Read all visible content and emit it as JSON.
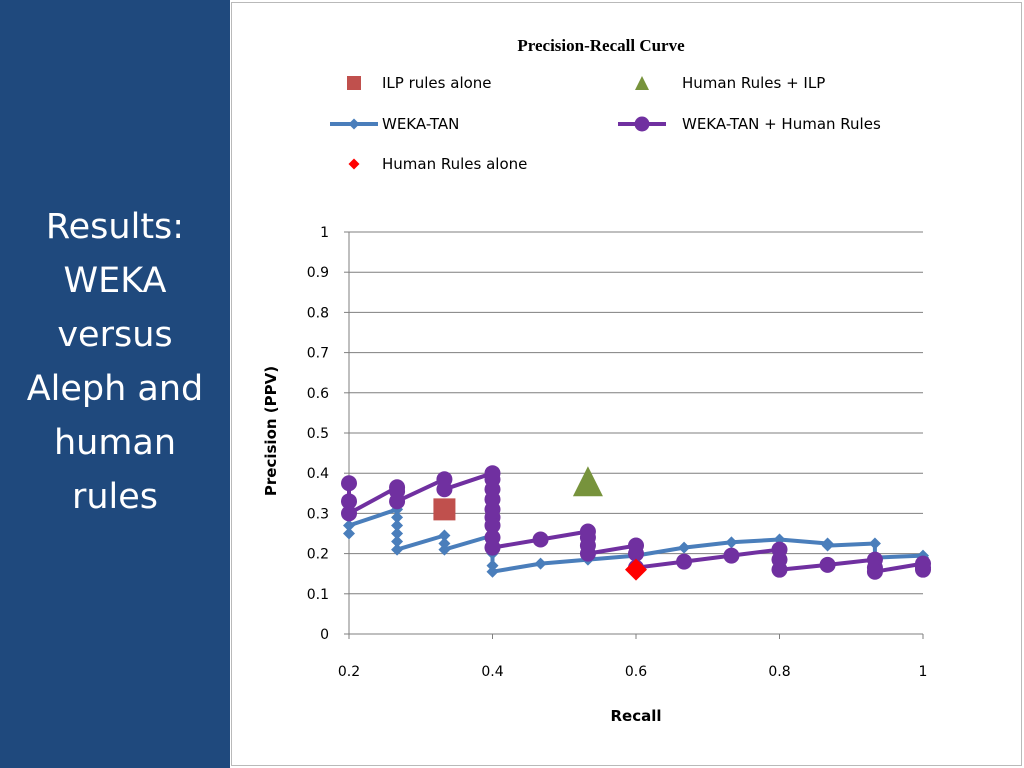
{
  "slide": {
    "title_lines": [
      "Results:",
      "WEKA",
      "versus",
      "Aleph and",
      "human",
      "rules"
    ],
    "colors": {
      "panel": "#1f497d",
      "text": "#ffffff"
    }
  },
  "chart_data": {
    "type": "line",
    "title": "Precision-Recall Curve",
    "xlabel": "Recall",
    "ylabel": "Precision (PPV)",
    "xlim": [
      0.2,
      1.0
    ],
    "ylim": [
      0,
      1
    ],
    "x_ticks": [
      "0.2",
      "0.4",
      "0.6",
      "0.8",
      "1"
    ],
    "y_ticks": [
      "0",
      "0.1",
      "0.2",
      "0.3",
      "0.4",
      "0.5",
      "0.6",
      "0.7",
      "0.8",
      "0.9",
      "1"
    ],
    "grid": true,
    "legend_position": "top",
    "series": [
      {
        "name": "ILP rules alone",
        "kind": "point",
        "marker": "square",
        "color": "#c0504d",
        "points": [
          [
            0.333,
            0.31
          ]
        ]
      },
      {
        "name": "Human Rules + ILP",
        "kind": "point",
        "marker": "triangle",
        "color": "#77933c",
        "points": [
          [
            0.533,
            0.38
          ]
        ]
      },
      {
        "name": "WEKA-TAN",
        "kind": "line",
        "marker": "diamond",
        "color": "#4a7ebb",
        "points": [
          [
            0.2,
            0.25
          ],
          [
            0.2,
            0.27
          ],
          [
            0.267,
            0.31
          ],
          [
            0.267,
            0.29
          ],
          [
            0.267,
            0.27
          ],
          [
            0.267,
            0.25
          ],
          [
            0.267,
            0.23
          ],
          [
            0.267,
            0.21
          ],
          [
            0.333,
            0.245
          ],
          [
            0.333,
            0.225
          ],
          [
            0.333,
            0.21
          ],
          [
            0.4,
            0.245
          ],
          [
            0.4,
            0.2
          ],
          [
            0.4,
            0.17
          ],
          [
            0.4,
            0.155
          ],
          [
            0.467,
            0.175
          ],
          [
            0.533,
            0.185
          ],
          [
            0.6,
            0.195
          ],
          [
            0.667,
            0.215
          ],
          [
            0.733,
            0.228
          ],
          [
            0.8,
            0.235
          ],
          [
            0.867,
            0.225
          ],
          [
            0.867,
            0.22
          ],
          [
            0.933,
            0.225
          ],
          [
            0.933,
            0.19
          ],
          [
            1.0,
            0.195
          ],
          [
            1.0,
            0.19
          ]
        ]
      },
      {
        "name": "WEKA-TAN + Human Rules",
        "kind": "line",
        "marker": "circle",
        "color": "#7030a0",
        "points": [
          [
            0.2,
            0.375
          ],
          [
            0.2,
            0.33
          ],
          [
            0.2,
            0.3
          ],
          [
            0.267,
            0.365
          ],
          [
            0.267,
            0.355
          ],
          [
            0.267,
            0.33
          ],
          [
            0.333,
            0.385
          ],
          [
            0.333,
            0.36
          ],
          [
            0.4,
            0.4
          ],
          [
            0.4,
            0.385
          ],
          [
            0.4,
            0.36
          ],
          [
            0.4,
            0.335
          ],
          [
            0.4,
            0.31
          ],
          [
            0.4,
            0.29
          ],
          [
            0.4,
            0.27
          ],
          [
            0.4,
            0.24
          ],
          [
            0.4,
            0.215
          ],
          [
            0.467,
            0.235
          ],
          [
            0.533,
            0.255
          ],
          [
            0.533,
            0.24
          ],
          [
            0.533,
            0.22
          ],
          [
            0.533,
            0.2
          ],
          [
            0.6,
            0.22
          ],
          [
            0.6,
            0.2
          ],
          [
            0.6,
            0.165
          ],
          [
            0.667,
            0.18
          ],
          [
            0.733,
            0.195
          ],
          [
            0.8,
            0.21
          ],
          [
            0.8,
            0.185
          ],
          [
            0.8,
            0.16
          ],
          [
            0.867,
            0.172
          ],
          [
            0.933,
            0.185
          ],
          [
            0.933,
            0.165
          ],
          [
            0.933,
            0.155
          ],
          [
            1.0,
            0.175
          ],
          [
            1.0,
            0.165
          ],
          [
            1.0,
            0.16
          ]
        ]
      },
      {
        "name": "Human Rules alone",
        "kind": "point",
        "marker": "diamond",
        "color": "#ff0000",
        "points": [
          [
            0.6,
            0.16
          ]
        ]
      }
    ]
  }
}
